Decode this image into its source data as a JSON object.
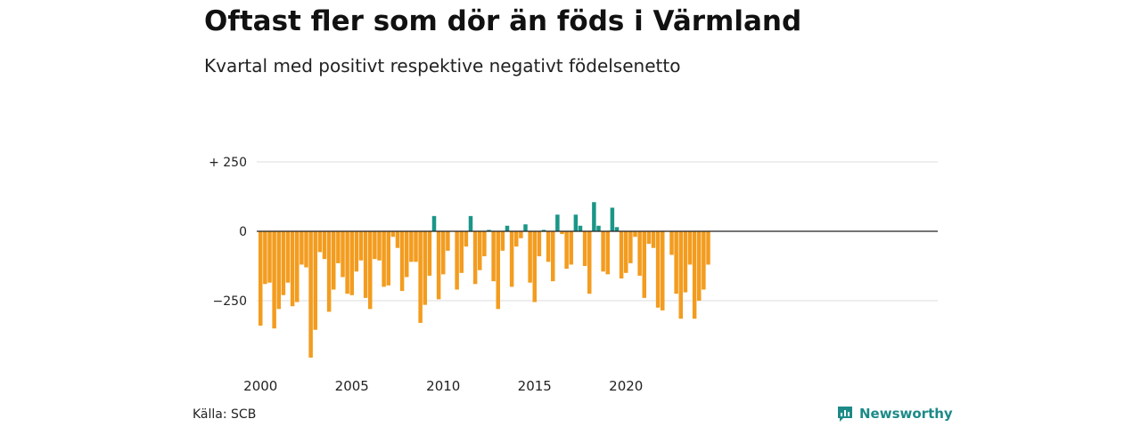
{
  "header": {
    "title": "Oftast fler som dör än föds i Värmland",
    "subtitle": "Kvartal med positivt respektive negativt födelsenetto"
  },
  "footer": {
    "source": "Källa: SCB",
    "brand": "Newsworthy",
    "brand_icon": "bar-chart-logo-icon"
  },
  "colors": {
    "negative": "#f39c1f",
    "positive": "#1a9688",
    "grid": "#dddddd",
    "zero_line": "#222222",
    "brand": "#1c8a88"
  },
  "chart_data": {
    "type": "bar",
    "title": "Oftast fler som dör än föds i Värmland",
    "subtitle": "Kvartal med positivt respektive negativt födelsenetto",
    "x_unit": "quarter",
    "x_start": "2000 Q1",
    "x_ticks": [
      "2000",
      "2005",
      "2010",
      "2015",
      "2020"
    ],
    "y_ticks": [
      250,
      0,
      -250
    ],
    "y_tick_labels": [
      "+ 250",
      "0",
      "−250"
    ],
    "ylim": [
      -460,
      300
    ],
    "grid": true,
    "legend": "none",
    "values": [
      -340,
      -190,
      -185,
      -350,
      -280,
      -230,
      -185,
      -270,
      -255,
      -120,
      -130,
      -455,
      -355,
      -75,
      -100,
      -290,
      -210,
      -115,
      -165,
      -225,
      -230,
      -145,
      -105,
      -240,
      -280,
      -100,
      -105,
      -200,
      -195,
      -20,
      -60,
      -215,
      -165,
      -110,
      -110,
      -330,
      -265,
      -160,
      55,
      -245,
      -155,
      -70,
      0,
      -210,
      -150,
      -55,
      55,
      -190,
      -140,
      -90,
      5,
      -180,
      -280,
      -70,
      20,
      -200,
      -55,
      -25,
      25,
      -185,
      -255,
      -90,
      5,
      -110,
      -180,
      60,
      -10,
      -135,
      -120,
      60,
      20,
      -125,
      -225,
      105,
      20,
      -145,
      -155,
      85,
      15,
      -170,
      -150,
      -115,
      -20,
      -160,
      -240,
      -45,
      -60,
      -275,
      -285,
      0,
      -85,
      -225,
      -315,
      -220,
      -120,
      -315,
      -250,
      -210,
      -120
    ]
  }
}
